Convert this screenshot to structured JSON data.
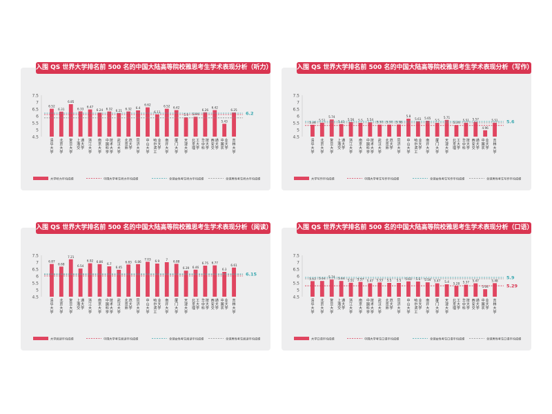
{
  "colors": {
    "bar": "#e04560",
    "china_line": "#d93551",
    "global_line": "#3aa8b0",
    "male_line": "#8a8a8a",
    "title_bg": "#d93551",
    "panel_bg": "#eeeeef"
  },
  "chart_data": [
    {
      "type": "bar",
      "title": "入围 QS 世界大学排名前 500 名的中国大陆高等院校雅思考生学术表现分析（听力）",
      "ylim": [
        4.5,
        7.5
      ],
      "yticks": [
        "7.5",
        "7",
        "6.5",
        "6",
        "5.5",
        "5",
        "4.5"
      ],
      "categories": [
        "清华大学",
        "北京大学",
        "复旦大学",
        "上海交通大学",
        "浙江大学",
        "南京大学",
        "中国科学技术大学",
        "武汉大学",
        "北京师范大学",
        "同济大学",
        "中山大学",
        "哈尔滨工业大学",
        "南开大学",
        "厦门大学",
        "天津大学",
        "北京理工大学",
        "华中科技大学",
        "西安交通大学",
        "中国农业大学",
        "吉林大学"
      ],
      "values": [
        6.52,
        6.31,
        6.85,
        6.33,
        6.47,
        6.24,
        6.32,
        6.21,
        6.32,
        6.4,
        6.62,
        6.11,
        6.52,
        6.42,
        5.9,
        5.94,
        6.26,
        6.42,
        5.43,
        6.25
      ],
      "value_labels": [
        "6.52",
        "6.31",
        "6.85",
        "6.33",
        "6.47",
        "6.24",
        "6.32",
        "6.21",
        "6.32",
        "6.4",
        "6.62",
        "6.11",
        "6.52",
        "6.42",
        "5.9",
        "5.94",
        "6.26",
        "6.42",
        "5.43",
        "6.25"
      ],
      "series": [
        {
          "name": "大学听力平均成绩",
          "kind": "bar"
        },
        {
          "name": "中国大学考生听力平均成绩",
          "kind": "line",
          "value": 6.1,
          "label": "6.1",
          "color": "china"
        },
        {
          "name": "全球女性考生听力平均成绩",
          "kind": "line",
          "value": 6.2,
          "label": "6.2",
          "color": "global"
        },
        {
          "name": "全球男性考生听力平均成绩",
          "kind": "line",
          "value": 5.86,
          "label": "5.86",
          "color": "male"
        }
      ]
    },
    {
      "type": "bar",
      "title": "入围 QS 世界大学排名前 500 名的中国大陆高等院校雅思考生学术表现分析（写作）",
      "ylim": [
        4.5,
        7.5
      ],
      "yticks": [
        "7.5",
        "7",
        "6.5",
        "6",
        "5.5",
        "5",
        "4.5"
      ],
      "categories": [
        "清华大学",
        "北京大学",
        "复旦大学",
        "上海交通大学",
        "浙江大学",
        "南京大学",
        "中国科学技术大学",
        "武汉大学",
        "北京师范大学",
        "同济大学",
        "中山大学",
        "哈尔滨工业大学",
        "南开大学",
        "厦门大学",
        "天津大学",
        "北京理工大学",
        "华中科技大学",
        "西安交通大学",
        "中国农业大学",
        "吉林大学"
      ],
      "values": [
        5.36,
        5.51,
        5.74,
        5.41,
        5.56,
        5.5,
        5.54,
        5.37,
        5.37,
        5.38,
        5.8,
        5.61,
        5.65,
        5.5,
        5.71,
        5.34,
        5.51,
        5.57,
        4.96,
        5.51
      ],
      "value_labels": [
        "5.36",
        "5.51",
        "5.74",
        "5.41",
        "5.56",
        "5.5",
        "5.54",
        "5.37",
        "5.37",
        "5.38",
        "5.8",
        "5.61",
        "5.65",
        "5.5",
        "5.71",
        "5.34",
        "5.51",
        "5.57",
        "4.96",
        "5.51"
      ],
      "series": [
        {
          "name": "大学写作平均成绩",
          "kind": "bar"
        },
        {
          "name": "中国大学考生写作平均成绩",
          "kind": "line",
          "value": 5.31,
          "label": "5.31",
          "color": "china"
        },
        {
          "name": "全球女性考生写作平均成绩",
          "kind": "line",
          "value": 5.6,
          "label": "5.6",
          "color": "global"
        },
        {
          "name": "全球男性考生写作平均成绩",
          "kind": "line",
          "value": 5.5,
          "label": "5.5",
          "color": "male"
        }
      ]
    },
    {
      "type": "bar",
      "title": "入围 QS 世界大学排名前 500 名的中国大陆高等院校雅思考生学术表现分析（阅读）",
      "ylim": [
        4.5,
        7.5
      ],
      "yticks": [
        "7.5",
        "7",
        "6.5",
        "6",
        "5.5",
        "5",
        "4.5"
      ],
      "categories": [
        "清华大学",
        "北京大学",
        "复旦大学",
        "上海交通大学",
        "浙江大学",
        "南京大学",
        "中国科学技术大学",
        "武汉大学",
        "北京师范大学",
        "同济大学",
        "中山大学",
        "哈尔滨工业大学",
        "南开大学",
        "厦门大学",
        "天津大学",
        "北京理工大学",
        "华中科技大学",
        "西安交通大学",
        "中国农业大学",
        "吉林大学"
      ],
      "values": [
        6.87,
        6.68,
        7.21,
        6.54,
        6.92,
        6.86,
        6.7,
        6.45,
        6.83,
        6.86,
        7.03,
        6.9,
        7.0,
        6.88,
        6.39,
        6.46,
        6.75,
        6.77,
        6.3,
        6.61
      ],
      "value_labels": [
        "6.87",
        "6.68",
        "7.21",
        "6.54",
        "6.92",
        "6.86",
        "6.7",
        "6.45",
        "6.83",
        "6.86",
        "7.03",
        "6.9",
        "7",
        "6.88",
        "6.39",
        "6.46",
        "6.75",
        "6.77",
        "6.3",
        "6.61"
      ],
      "series": [
        {
          "name": "大学阅读平均成绩",
          "kind": "bar"
        },
        {
          "name": "中国大学考生阅读平均成绩",
          "kind": "line",
          "value": 6.0,
          "label": "6",
          "color": "china"
        },
        {
          "name": "全球女性考生阅读平均成绩",
          "kind": "line",
          "value": 6.15,
          "label": "6.15",
          "color": "global"
        },
        {
          "name": "全球男性考生阅读平均成绩",
          "kind": "line",
          "value": 6.1,
          "label": "6.1",
          "color": "male"
        }
      ]
    },
    {
      "type": "bar",
      "title": "入围 QS 世界大学排名前 500 名的中国大陆高等院校雅思考生学术表现分析（口语）",
      "ylim": [
        4.5,
        7.5
      ],
      "yticks": [
        "7.5",
        "7",
        "6.5",
        "6",
        "5.5",
        "5",
        "4.5"
      ],
      "categories": [
        "清华大学",
        "北京大学",
        "复旦大学",
        "上海交通大学",
        "浙江大学",
        "南京大学",
        "中国科学技术大学",
        "武汉大学",
        "北京师范大学",
        "同济大学",
        "中山大学",
        "哈尔滨工业大学",
        "南开大学",
        "厦门大学",
        "天津大学",
        "北京理工大学",
        "华中科技大学",
        "西安交通大学",
        "中国农业大学",
        "吉林大学"
      ],
      "values": [
        5.63,
        5.64,
        5.74,
        5.64,
        5.51,
        5.57,
        5.47,
        5.53,
        5.5,
        5.5,
        5.61,
        5.6,
        5.54,
        5.47,
        5.4,
        5.28,
        5.37,
        5.47,
        5.04,
        5.48
      ],
      "value_labels": [
        "5.63",
        "5.64",
        "5.74",
        "5.64",
        "5.51",
        "5.57",
        "5.47",
        "5.53",
        "5.5",
        "5.5",
        "5.61",
        "5.6",
        "5.54",
        "5.47",
        "5.4",
        "5.28",
        "5.37",
        "5.47",
        "5.04",
        "5.48"
      ],
      "series": [
        {
          "name": "大学口语平均成绩",
          "kind": "bar"
        },
        {
          "name": "中国大学考生口语平均成绩",
          "kind": "line",
          "value": 5.29,
          "label": "5.29",
          "color": "china"
        },
        {
          "name": "全球女性考生口语平均成绩",
          "kind": "line",
          "value": 5.9,
          "label": "5.9",
          "color": "global"
        },
        {
          "name": "全球男性考生口语平均成绩",
          "kind": "line",
          "value": 5.8,
          "label": "5.8",
          "color": "male"
        }
      ]
    }
  ]
}
